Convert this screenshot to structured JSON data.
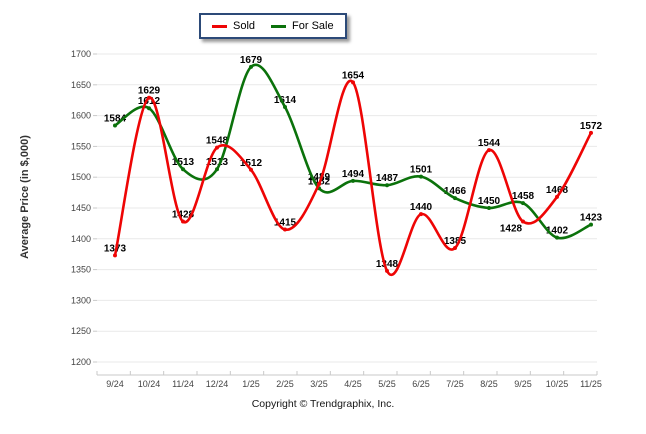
{
  "chart_data": {
    "type": "line",
    "title": "",
    "categories": [
      "9/24",
      "10/24",
      "11/24",
      "12/24",
      "1/25",
      "2/25",
      "3/25",
      "4/25",
      "5/25",
      "6/25",
      "7/25",
      "8/25",
      "9/25",
      "10/25",
      "11/25"
    ],
    "series": [
      {
        "name": "Sold",
        "color": "#ee0505",
        "values": [
          1373,
          1629,
          1428,
          1548,
          1512,
          1415,
          1489,
          1654,
          1348,
          1440,
          1385,
          1544,
          1428,
          1468,
          1572
        ],
        "label_offsets": {
          "12": [
            -12,
            14
          ]
        }
      },
      {
        "name": "For Sale",
        "color": "#0b720b",
        "values": [
          1584,
          1612,
          1513,
          1513,
          1679,
          1614,
          1482,
          1494,
          1487,
          1501,
          1466,
          1450,
          1458,
          1402,
          1423
        ],
        "label_offsets": {}
      }
    ],
    "ylabel": "Average Price (in $,000)",
    "xlabel": "",
    "ylim": [
      1200,
      1700
    ],
    "ytick_step": 50,
    "grid": "horizontal",
    "legend_position": "top-center",
    "line_smoothing": "spline"
  },
  "legend": {
    "items": [
      "Sold",
      "For Sale"
    ]
  },
  "footer": {
    "copyright": "Copyright © Trendgraphix, Inc."
  },
  "colors": {
    "grid": "#e9e9e9",
    "axis": "#c9c9c9",
    "tick_text": "#444444",
    "data_label": "#000000",
    "legend_border": "#2c4a78",
    "background": "#ffffff"
  }
}
